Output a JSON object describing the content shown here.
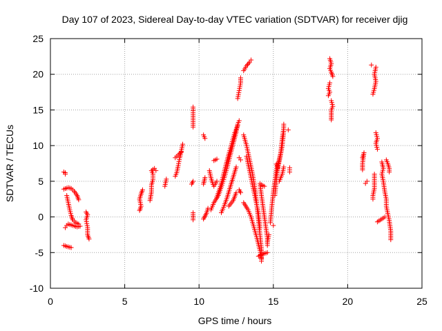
{
  "chart_data": {
    "type": "scatter",
    "title": "Day 107 of 2023, Sidereal Day-to-day VTEC variation (SDTVAR) for receiver djig",
    "xlabel": "GPS time / hours",
    "ylabel": "SDTVAR / TECUs",
    "xlim": [
      0,
      25
    ],
    "ylim": [
      -10,
      25
    ],
    "xticks": [
      "0",
      "5",
      "10",
      "15",
      "20",
      "25"
    ],
    "yticks": [
      "-10",
      "-5",
      "0",
      "5",
      "10",
      "15",
      "20",
      "25"
    ],
    "grid": true,
    "legend": "none",
    "marker": "+",
    "color": "#ff0000",
    "segments": [
      [
        [
          0.9,
          6.3
        ],
        [
          1.0,
          6.0
        ],
        [
          1.0,
          6.2
        ]
      ],
      [
        [
          0.9,
          3.9
        ],
        [
          1.2,
          4.1
        ],
        [
          1.4,
          4.0
        ],
        [
          1.6,
          3.6
        ],
        [
          1.8,
          3.0
        ],
        [
          1.9,
          2.4
        ]
      ],
      [
        [
          1.1,
          3.0
        ],
        [
          1.2,
          2.0
        ],
        [
          1.3,
          1.0
        ],
        [
          1.4,
          0.2
        ],
        [
          1.5,
          -0.4
        ],
        [
          1.7,
          -0.8
        ],
        [
          1.9,
          -1.0
        ]
      ],
      [
        [
          1.2,
          -1.0
        ],
        [
          1.5,
          -1.2
        ],
        [
          1.8,
          -1.4
        ],
        [
          2.0,
          -1.3
        ]
      ],
      [
        [
          1.0,
          -1.5
        ],
        [
          1.1,
          -1.2
        ]
      ],
      [
        [
          0.9,
          -4.0
        ],
        [
          1.2,
          -4.2
        ],
        [
          1.4,
          -4.3
        ]
      ],
      [
        [
          2.4,
          0.7
        ],
        [
          2.5,
          0.3
        ],
        [
          2.4,
          -0.4
        ],
        [
          2.5,
          -1.5
        ],
        [
          2.5,
          -2.5
        ],
        [
          2.6,
          -3.1
        ]
      ],
      [
        [
          6.0,
          0.9
        ],
        [
          6.1,
          1.5
        ],
        [
          6.0,
          2.5
        ],
        [
          6.1,
          3.2
        ],
        [
          6.2,
          3.8
        ]
      ],
      [
        [
          6.7,
          2.3
        ],
        [
          6.8,
          3.5
        ],
        [
          6.8,
          4.5
        ],
        [
          6.9,
          5.2
        ],
        [
          6.9,
          6.0
        ],
        [
          6.8,
          6.5
        ],
        [
          7.0,
          6.8
        ],
        [
          7.1,
          6.5
        ]
      ],
      [
        [
          7.7,
          4.3
        ],
        [
          7.8,
          5.3
        ]
      ],
      [
        [
          8.4,
          5.7
        ],
        [
          8.5,
          6.2
        ],
        [
          8.6,
          7.2
        ],
        [
          8.7,
          8.3
        ],
        [
          8.8,
          9.2
        ],
        [
          8.9,
          10.2
        ]
      ],
      [
        [
          8.4,
          8.3
        ],
        [
          8.6,
          8.7
        ],
        [
          8.8,
          9.1
        ]
      ],
      [
        [
          9.6,
          15.4
        ],
        [
          9.6,
          12.6
        ]
      ],
      [
        [
          9.6,
          5.0
        ],
        [
          9.5,
          4.6
        ]
      ],
      [
        [
          9.6,
          0.6
        ],
        [
          9.6,
          -0.4
        ]
      ],
      [
        [
          10.3,
          11.5
        ],
        [
          10.4,
          11.0
        ]
      ],
      [
        [
          10.4,
          5.5
        ],
        [
          10.3,
          4.6
        ]
      ],
      [
        [
          10.3,
          -0.3
        ],
        [
          10.5,
          0.5
        ],
        [
          10.6,
          1.2
        ]
      ],
      [
        [
          10.7,
          6.5
        ],
        [
          10.8,
          5.5
        ],
        [
          10.9,
          4.8
        ],
        [
          11.0,
          4.3
        ],
        [
          11.2,
          5.0
        ]
      ],
      [
        [
          11.0,
          7.9
        ],
        [
          11.2,
          8.1
        ]
      ],
      [
        [
          10.8,
          1.0
        ],
        [
          11.0,
          2.0
        ],
        [
          11.3,
          3.0
        ],
        [
          11.5,
          4.2
        ],
        [
          11.7,
          5.5
        ],
        [
          11.9,
          7.0
        ],
        [
          12.1,
          8.7
        ],
        [
          12.3,
          10.3
        ],
        [
          12.5,
          11.9
        ],
        [
          12.6,
          13.0
        ],
        [
          12.7,
          13.5
        ]
      ],
      [
        [
          11.2,
          2.8
        ],
        [
          11.4,
          4.0
        ],
        [
          11.6,
          5.5
        ],
        [
          11.8,
          7.2
        ],
        [
          12.0,
          8.8
        ],
        [
          12.2,
          10.3
        ],
        [
          12.4,
          11.8
        ],
        [
          12.6,
          12.8
        ]
      ],
      [
        [
          11.5,
          0.6
        ],
        [
          11.7,
          1.6
        ],
        [
          11.9,
          2.8
        ],
        [
          12.1,
          4.2
        ],
        [
          12.3,
          5.6
        ],
        [
          12.5,
          7.0
        ]
      ],
      [
        [
          12.0,
          1.5
        ],
        [
          12.3,
          2.3
        ],
        [
          12.5,
          3.4
        ]
      ],
      [
        [
          12.7,
          8.3
        ],
        [
          12.8,
          8.0
        ]
      ],
      [
        [
          12.7,
          3.8
        ],
        [
          12.8,
          3.4
        ]
      ],
      [
        [
          12.6,
          16.6
        ],
        [
          12.7,
          17.7
        ],
        [
          12.8,
          18.8
        ],
        [
          12.8,
          19.5
        ]
      ],
      [
        [
          13.0,
          20.5
        ],
        [
          13.2,
          21.2
        ],
        [
          13.4,
          21.7
        ],
        [
          13.5,
          22.0
        ]
      ],
      [
        [
          13.0,
          11.5
        ],
        [
          13.2,
          10.0
        ],
        [
          13.4,
          8.0
        ],
        [
          13.6,
          6.0
        ],
        [
          13.8,
          3.5
        ],
        [
          13.9,
          1.5
        ],
        [
          14.0,
          -0.5
        ],
        [
          14.1,
          -2.5
        ],
        [
          14.2,
          -4.5
        ],
        [
          14.2,
          -6.2
        ]
      ],
      [
        [
          13.2,
          8.5
        ],
        [
          13.4,
          6.5
        ],
        [
          13.6,
          4.5
        ],
        [
          13.8,
          2.5
        ],
        [
          14.0,
          0.5
        ],
        [
          14.1,
          -1.5
        ]
      ],
      [
        [
          13.0,
          2.0
        ],
        [
          13.3,
          1.0
        ],
        [
          13.5,
          0.0
        ],
        [
          13.7,
          -1.5
        ],
        [
          13.9,
          -3.0
        ],
        [
          14.1,
          -4.7
        ],
        [
          14.2,
          -5.8
        ]
      ],
      [
        [
          14.0,
          -5.5
        ],
        [
          14.3,
          -5.2
        ],
        [
          14.6,
          -5.0
        ]
      ],
      [
        [
          14.1,
          4.7
        ],
        [
          14.2,
          3.0
        ],
        [
          14.3,
          1.5
        ],
        [
          14.4,
          0.0
        ],
        [
          14.5,
          -1.5
        ],
        [
          14.6,
          -3.0
        ],
        [
          14.6,
          -4.0
        ]
      ],
      [
        [
          14.2,
          4.5
        ],
        [
          14.4,
          4.3
        ]
      ],
      [
        [
          14.6,
          -3.5
        ],
        [
          14.7,
          -2.5
        ]
      ],
      [
        [
          14.8,
          -0.8
        ],
        [
          14.9,
          1.5
        ],
        [
          15.0,
          3.5
        ],
        [
          15.1,
          5.0
        ],
        [
          15.2,
          6.5
        ],
        [
          15.3,
          7.5
        ]
      ],
      [
        [
          15.0,
          -1.2
        ]
      ],
      [
        [
          15.1,
          3.0
        ],
        [
          15.2,
          5.0
        ],
        [
          15.3,
          7.2
        ],
        [
          15.5,
          9.0
        ],
        [
          15.6,
          11.0
        ],
        [
          15.7,
          12.5
        ],
        [
          15.7,
          13.0
        ]
      ],
      [
        [
          15.2,
          6.0
        ],
        [
          15.4,
          7.8
        ],
        [
          15.6,
          10.0
        ],
        [
          15.7,
          12.0
        ]
      ],
      [
        [
          15.4,
          5.0
        ],
        [
          15.6,
          6.0
        ],
        [
          15.7,
          7.0
        ]
      ],
      [
        [
          15.2,
          7.4
        ],
        [
          15.3,
          6.9
        ]
      ],
      [
        [
          16.1,
          6.9
        ],
        [
          16.1,
          6.3
        ]
      ],
      [
        [
          16.0,
          12.2
        ]
      ],
      [
        [
          18.8,
          22.2
        ],
        [
          18.9,
          21.5
        ],
        [
          18.8,
          20.8
        ],
        [
          18.9,
          20.3
        ],
        [
          19.0,
          19.7
        ]
      ],
      [
        [
          18.8,
          18.8
        ],
        [
          18.7,
          18.0
        ],
        [
          18.8,
          17.5
        ],
        [
          18.7,
          17.0
        ]
      ],
      [
        [
          18.9,
          16.3
        ],
        [
          19.0,
          15.5
        ],
        [
          18.9,
          15.0
        ],
        [
          18.9,
          14.3
        ],
        [
          18.9,
          13.6
        ]
      ],
      [
        [
          21.0,
          8.3
        ],
        [
          21.1,
          9.0
        ],
        [
          21.0,
          7.5
        ],
        [
          21.0,
          6.6
        ]
      ],
      [
        [
          21.3,
          5.0
        ],
        [
          21.2,
          4.7
        ]
      ],
      [
        [
          21.6,
          21.3
        ]
      ],
      [
        [
          21.9,
          21.0
        ],
        [
          21.8,
          20.0
        ],
        [
          21.9,
          19.0
        ],
        [
          21.8,
          18.0
        ],
        [
          21.7,
          17.2
        ]
      ],
      [
        [
          21.9,
          11.8
        ],
        [
          22.0,
          11.0
        ],
        [
          21.9,
          10.3
        ],
        [
          22.0,
          9.5
        ]
      ],
      [
        [
          21.8,
          6.0
        ],
        [
          21.8,
          5.0
        ],
        [
          21.8,
          4.0
        ],
        [
          21.7,
          3.0
        ],
        [
          21.7,
          2.5
        ]
      ],
      [
        [
          22.3,
          7.7
        ],
        [
          22.4,
          6.8
        ],
        [
          22.3,
          6.0
        ],
        [
          22.4,
          5.0
        ],
        [
          22.5,
          3.5
        ],
        [
          22.6,
          2.5
        ],
        [
          22.6,
          1.5
        ],
        [
          22.7,
          0.5
        ],
        [
          22.8,
          -0.5
        ],
        [
          22.9,
          -2.0
        ],
        [
          22.9,
          -3.2
        ]
      ],
      [
        [
          22.6,
          8.0
        ],
        [
          22.7,
          7.5
        ],
        [
          22.8,
          6.8
        ],
        [
          22.8,
          6.3
        ]
      ],
      [
        [
          22.0,
          -0.7
        ],
        [
          22.3,
          -0.3
        ],
        [
          22.5,
          0.0
        ]
      ]
    ]
  }
}
